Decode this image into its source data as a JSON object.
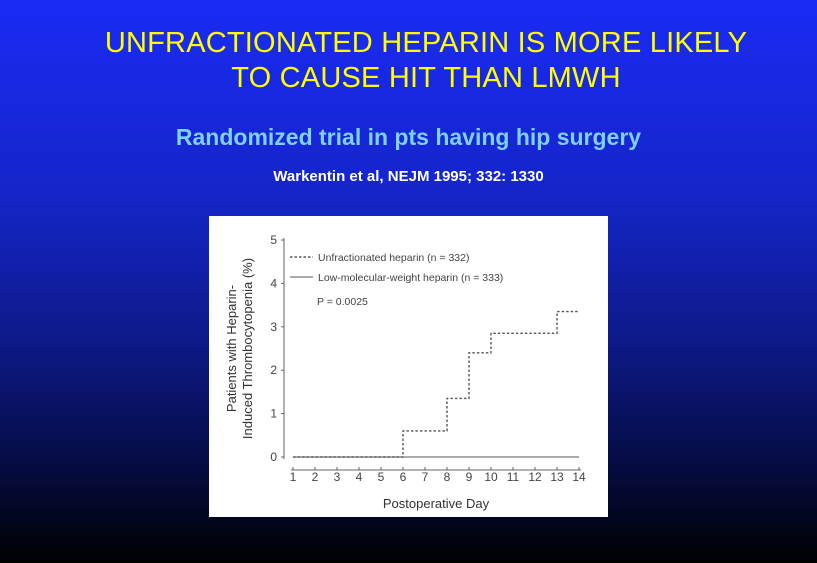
{
  "slide": {
    "title_line1": "UNFRACTIONATED HEPARIN IS MORE LIKELY",
    "title_line2": "TO CAUSE HIT THAN LMWH",
    "subtitle": "Randomized trial in pts having hip surgery",
    "citation": "Warkentin et al, NEJM 1995; 332: 1330"
  },
  "chart_data": {
    "type": "line",
    "step": true,
    "xlabel": "Postoperative Day",
    "ylabel_line1": "Patients with Heparin-",
    "ylabel_line2": "Induced Thrombocytopenia (%)",
    "xlim": [
      1,
      14
    ],
    "ylim": [
      0,
      5
    ],
    "x_ticks": [
      1,
      2,
      3,
      4,
      5,
      6,
      7,
      8,
      9,
      10,
      11,
      12,
      13,
      14
    ],
    "y_ticks": [
      0,
      1,
      2,
      3,
      4,
      5
    ],
    "grid": false,
    "legend_position": "top-left",
    "annotation": "P = 0.0025",
    "series": [
      {
        "name": "Unfractionated heparin (n = 332)",
        "style": "dashed",
        "color": "#555555",
        "x": [
          1,
          6,
          8,
          9,
          10,
          13,
          14
        ],
        "y": [
          0,
          0.6,
          1.35,
          2.4,
          2.85,
          3.35,
          3.35
        ]
      },
      {
        "name": "Low-molecular-weight heparin (n = 333)",
        "style": "solid",
        "color": "#555555",
        "x": [
          1,
          14
        ],
        "y": [
          0,
          0
        ]
      }
    ]
  }
}
